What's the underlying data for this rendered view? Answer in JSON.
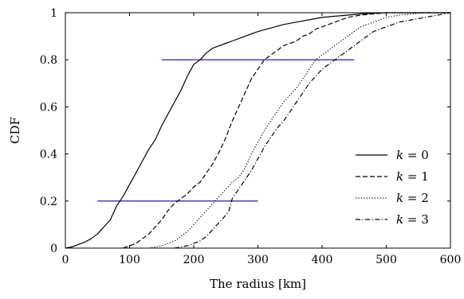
{
  "chart_data": {
    "type": "line",
    "title": "",
    "xlabel": "The radius [km]",
    "ylabel": "CDF",
    "xlim": [
      0,
      600
    ],
    "ylim": [
      0,
      1
    ],
    "xticks": [
      0,
      100,
      200,
      300,
      400,
      500,
      600
    ],
    "yticks": [
      0,
      0.2,
      0.4,
      0.6,
      0.8,
      1
    ],
    "xtick_labels": [
      "0",
      "100",
      "200",
      "300",
      "400",
      "500",
      "600"
    ],
    "ytick_labels": [
      "0",
      "0.2",
      "0.4",
      "0.6",
      "0.8",
      "1"
    ],
    "grid": false,
    "legend_position": "bottom-right",
    "series": [
      {
        "name": "k = 0",
        "style": "solid",
        "x": [
          0,
          10,
          20,
          30,
          40,
          50,
          60,
          70,
          80,
          90,
          100,
          110,
          120,
          130,
          140,
          150,
          160,
          170,
          180,
          190,
          200,
          210,
          220,
          230,
          240,
          250,
          260,
          270,
          280,
          290,
          300,
          320,
          340,
          360,
          380,
          400,
          420,
          440,
          460,
          480,
          500,
          520,
          540,
          560,
          580,
          600
        ],
        "y": [
          0,
          0.005,
          0.015,
          0.025,
          0.04,
          0.06,
          0.09,
          0.12,
          0.18,
          0.22,
          0.27,
          0.32,
          0.37,
          0.42,
          0.46,
          0.52,
          0.57,
          0.62,
          0.67,
          0.73,
          0.78,
          0.8,
          0.83,
          0.85,
          0.86,
          0.87,
          0.88,
          0.89,
          0.9,
          0.91,
          0.92,
          0.935,
          0.95,
          0.96,
          0.97,
          0.98,
          0.985,
          0.99,
          0.995,
          0.998,
          1,
          1,
          1,
          1,
          1,
          1
        ]
      },
      {
        "name": "k = 1",
        "style": "dashed",
        "x": [
          90,
          100,
          110,
          120,
          130,
          140,
          150,
          160,
          170,
          180,
          190,
          200,
          210,
          220,
          230,
          240,
          250,
          260,
          270,
          280,
          290,
          300,
          310,
          320,
          330,
          340,
          350,
          360,
          370,
          380,
          390,
          400,
          410,
          420,
          430,
          440,
          450,
          460,
          480,
          500,
          520,
          540,
          560,
          580,
          600
        ],
        "y": [
          0,
          0.01,
          0.02,
          0.04,
          0.06,
          0.09,
          0.12,
          0.16,
          0.19,
          0.21,
          0.23,
          0.26,
          0.28,
          0.32,
          0.36,
          0.41,
          0.47,
          0.54,
          0.6,
          0.66,
          0.72,
          0.76,
          0.8,
          0.82,
          0.84,
          0.86,
          0.87,
          0.88,
          0.9,
          0.91,
          0.93,
          0.94,
          0.95,
          0.96,
          0.97,
          0.98,
          0.985,
          0.99,
          0.995,
          1,
          1,
          1,
          1,
          1,
          1
        ]
      },
      {
        "name": "k = 2",
        "style": "dotted",
        "x": [
          130,
          140,
          150,
          160,
          170,
          180,
          190,
          200,
          210,
          220,
          230,
          240,
          250,
          260,
          270,
          280,
          290,
          300,
          310,
          320,
          330,
          340,
          350,
          360,
          370,
          380,
          390,
          400,
          410,
          420,
          430,
          440,
          450,
          460,
          470,
          480,
          490,
          500,
          520,
          540,
          560,
          580,
          600
        ],
        "y": [
          0,
          0.005,
          0.01,
          0.02,
          0.03,
          0.05,
          0.07,
          0.1,
          0.13,
          0.16,
          0.19,
          0.22,
          0.25,
          0.28,
          0.3,
          0.34,
          0.4,
          0.45,
          0.5,
          0.54,
          0.58,
          0.62,
          0.65,
          0.68,
          0.72,
          0.76,
          0.8,
          0.82,
          0.84,
          0.86,
          0.88,
          0.9,
          0.92,
          0.94,
          0.95,
          0.96,
          0.97,
          0.98,
          0.99,
          0.995,
          1,
          1,
          1
        ]
      },
      {
        "name": "k = 3",
        "style": "dashdot",
        "x": [
          170,
          180,
          190,
          200,
          210,
          220,
          230,
          240,
          250,
          255,
          260,
          270,
          280,
          290,
          300,
          310,
          320,
          330,
          340,
          350,
          360,
          370,
          380,
          390,
          400,
          410,
          420,
          430,
          440,
          450,
          460,
          470,
          480,
          490,
          500,
          520,
          540,
          560,
          580,
          590,
          600
        ],
        "y": [
          0,
          0.005,
          0.01,
          0.02,
          0.03,
          0.05,
          0.08,
          0.11,
          0.14,
          0.16,
          0.21,
          0.25,
          0.29,
          0.33,
          0.38,
          0.43,
          0.47,
          0.51,
          0.54,
          0.58,
          0.62,
          0.66,
          0.7,
          0.73,
          0.76,
          0.78,
          0.8,
          0.82,
          0.84,
          0.86,
          0.88,
          0.9,
          0.92,
          0.93,
          0.94,
          0.96,
          0.97,
          0.98,
          0.99,
          0.995,
          1
        ]
      }
    ],
    "reference_lines": [
      {
        "y": 0.8,
        "x": [
          150,
          450
        ],
        "color": "#0000cc"
      },
      {
        "y": 0.2,
        "x": [
          50,
          300
        ],
        "color": "#0000cc"
      }
    ]
  },
  "legend": {
    "items": [
      {
        "name_prefix": "k",
        "equals": " = ",
        "value": "0",
        "style": "solid"
      },
      {
        "name_prefix": "k",
        "equals": " = ",
        "value": "1",
        "style": "dashed"
      },
      {
        "name_prefix": "k",
        "equals": " = ",
        "value": "2",
        "style": "dotted"
      },
      {
        "name_prefix": "k",
        "equals": " = ",
        "value": "3",
        "style": "dashdot"
      }
    ]
  }
}
